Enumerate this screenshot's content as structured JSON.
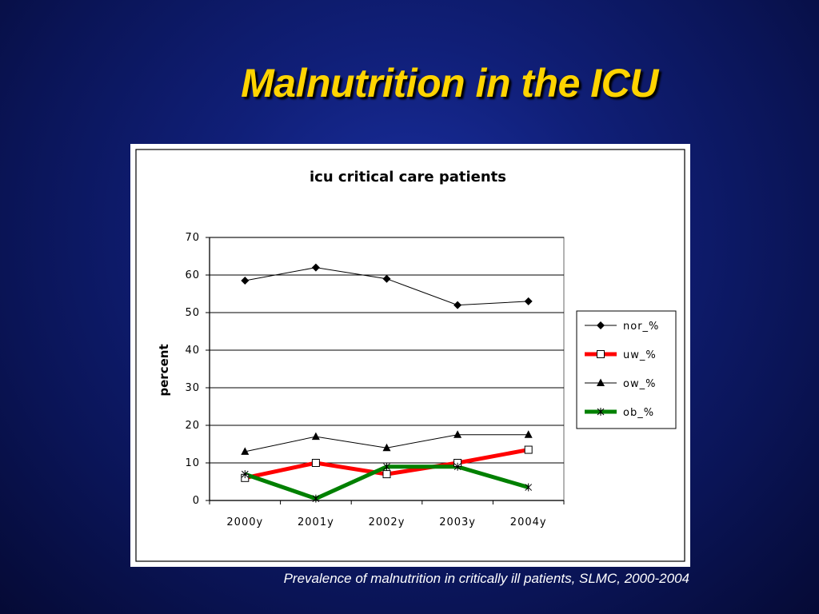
{
  "slide": {
    "title": "Malnutrition in the ICU",
    "caption": "Prevalence of malnutrition in critically ill patients, SLMC, 2000-2004"
  },
  "chart_data": {
    "type": "line",
    "title": "icu critical care patients",
    "xlabel": "",
    "ylabel": "percent",
    "categories": [
      "2000y",
      "2001y",
      "2002y",
      "2003y",
      "2004y"
    ],
    "ylim": [
      0,
      70
    ],
    "yticks": [
      0,
      10,
      20,
      30,
      40,
      50,
      60,
      70
    ],
    "grid": true,
    "legend": "right",
    "series": [
      {
        "name": "nor_%",
        "values": [
          58.5,
          62,
          59,
          52,
          53
        ],
        "color": "#000000",
        "marker": "diamond"
      },
      {
        "name": "uw_%",
        "values": [
          6,
          10,
          7,
          10,
          13.5
        ],
        "color": "#ff0000",
        "marker": "square"
      },
      {
        "name": "ow_%",
        "values": [
          13,
          17,
          14,
          17.5,
          17.5
        ],
        "color": "#000000",
        "marker": "triangle"
      },
      {
        "name": "ob_%",
        "values": [
          7,
          0.5,
          9,
          9,
          3.5
        ],
        "color": "#008000",
        "marker": "star"
      }
    ]
  }
}
